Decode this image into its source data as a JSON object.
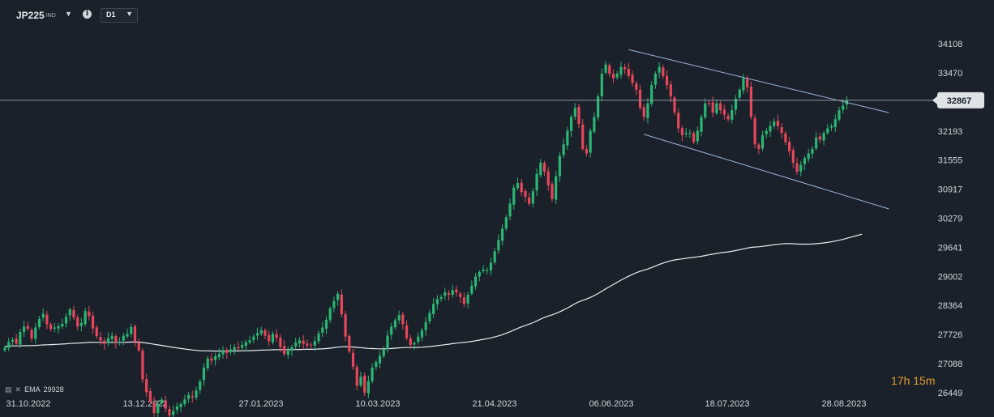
{
  "header": {
    "symbol": "JP225",
    "symbol_type": "IND",
    "info_icon": "info-icon",
    "timeframe": "D1"
  },
  "indicator": {
    "label": "EMA",
    "value": "29928",
    "icons": [
      "settings-icon",
      "close-icon"
    ]
  },
  "countdown": {
    "hours": "17",
    "h_unit": "h",
    "minutes": "15",
    "m_unit": "m"
  },
  "colors": {
    "background": "#1a212a",
    "bull": "#2bb673",
    "bear": "#e8465a",
    "ema": "#e9edf1",
    "channel": "#9db4d6",
    "price_line": "#8a97a6",
    "price_label_bg": "#dfe3e8"
  },
  "chart_data": {
    "type": "candlestick",
    "symbol": "JP225",
    "timeframe": "D1",
    "current_price": 32867,
    "y_ticks": [
      34108,
      33470,
      32867,
      32193,
      31555,
      30917,
      30279,
      29641,
      29002,
      28364,
      27726,
      27088,
      26449
    ],
    "x_ticks": [
      "31.10.2022",
      "13.12.2022",
      "27.01.2023",
      "10.03.2023",
      "21.04.2023",
      "06.06.2023",
      "18.07.2023",
      "28.08.2023"
    ],
    "closes": [
      27440,
      27560,
      27610,
      27520,
      27780,
      27900,
      27850,
      27640,
      27880,
      28070,
      28180,
      27950,
      27840,
      27880,
      27910,
      27960,
      28120,
      28280,
      28100,
      27900,
      27980,
      28240,
      28130,
      27860,
      27690,
      27590,
      27520,
      27650,
      27700,
      27550,
      27570,
      27700,
      27740,
      27890,
      27570,
      27380,
      26740,
      26460,
      26250,
      26000,
      26200,
      26300,
      26100,
      25950,
      26050,
      26150,
      26200,
      26300,
      26400,
      26350,
      26500,
      26700,
      27000,
      27200,
      27150,
      27250,
      27300,
      27380,
      27320,
      27400,
      27450,
      27420,
      27500,
      27560,
      27600,
      27680,
      27760,
      27820,
      27700,
      27580,
      27740,
      27650,
      27450,
      27300,
      27370,
      27450,
      27550,
      27600,
      27520,
      27480,
      27500,
      27580,
      27750,
      27880,
      28050,
      28300,
      28460,
      28620,
      28170,
      27680,
      27350,
      27020,
      26600,
      26800,
      26450,
      26700,
      27000,
      27120,
      27260,
      27400,
      27700,
      27900,
      28040,
      28150,
      27950,
      27650,
      27500,
      27540,
      27680,
      27820,
      28000,
      28200,
      28400,
      28500,
      28550,
      28650,
      28600,
      28700,
      28650,
      28550,
      28400,
      28600,
      28800,
      29000,
      29100,
      29150,
      29140,
      29300,
      29550,
      29800,
      30050,
      30300,
      30600,
      30950,
      31050,
      30850,
      30750,
      30600,
      30870,
      31250,
      31500,
      31300,
      31000,
      30700,
      31200,
      31650,
      31900,
      32200,
      32500,
      32700,
      32350,
      31800,
      31700,
      32200,
      32500,
      32950,
      33450,
      33650,
      33450,
      33350,
      33450,
      33600,
      33550,
      33400,
      33250,
      33100,
      32700,
      32500,
      32800,
      33200,
      33450,
      33600,
      33400,
      33200,
      32950,
      32600,
      32250,
      32100,
      32150,
      32150,
      31950,
      32200,
      32500,
      32800,
      32800,
      32600,
      32800,
      32650,
      32550,
      32450,
      32650,
      32900,
      33100,
      33350,
      33150,
      32500,
      31900,
      31800,
      32100,
      32200,
      32300,
      32400,
      32300,
      32150,
      31950,
      31750,
      31500,
      31300,
      31450,
      31600,
      31700,
      31800,
      32050,
      32000,
      32150,
      32250,
      32300,
      32450,
      32650,
      32750,
      32867
    ],
    "ema_start_index": 0,
    "ema": [
      27463,
      27472,
      27476,
      27476,
      27477,
      27480,
      27483,
      27483,
      27487,
      27492,
      27498,
      27501,
      27505,
      27508,
      27512,
      27517,
      27523,
      27530,
      27535,
      27537,
      27541,
      27548,
      27553,
      27556,
      27555,
      27555,
      27554,
      27555,
      27555,
      27555,
      27555,
      27556,
      27558,
      27561,
      27561,
      27560,
      27551,
      27540,
      27527,
      27512,
      27499,
      27487,
      27473,
      27458,
      27445,
      27432,
      27419,
      27408,
      27398,
      27387,
      27378,
      27371,
      27368,
      27367,
      27365,
      27364,
      27363,
      27364,
      27363,
      27364,
      27365,
      27366,
      27368,
      27370,
      27372,
      27375,
      27379,
      27383,
      27386,
      27388,
      27391,
      27394,
      27395,
      27394,
      27394,
      27395,
      27396,
      27398,
      27400,
      27401,
      27402,
      27404,
      27408,
      27412,
      27418,
      27427,
      27437,
      27449,
      27456,
      27458,
      27457,
      27453,
      27445,
      27438,
      27428,
      27421,
      27417,
      27414,
      27413,
      27413,
      27415,
      27420,
      27426,
      27433,
      27438,
      27440,
      27441,
      27442,
      27444,
      27448,
      27454,
      27461,
      27471,
      27481,
      27492,
      27503,
      27514,
      27525,
      27536,
      27545,
      27553,
      27563,
      27575,
      27589,
      27604,
      27620,
      27635,
      27652,
      27673,
      27697,
      27723,
      27753,
      27787,
      27823,
      27860,
      27894,
      27926,
      27955,
      27987,
      28024,
      28064,
      28101,
      28132,
      28158,
      28188,
      28225,
      28265,
      28307,
      28354,
      28403,
      28445,
      28476,
      28505,
      28541,
      28582,
      28626,
      28675,
      28728,
      28777,
      28823,
      28871,
      28919,
      28964,
      29007,
      29046,
      29083,
      29112,
      29137,
      29165,
      29196,
      29229,
      29264,
      29294,
      29321,
      29344,
      29363,
      29376,
      29387,
      29399,
      29411,
      29419,
      29430,
      29443,
      29460,
      29477,
      29490,
      29506,
      29519,
      29530,
      29540,
      29553,
      29569,
      29587,
      29607,
      29625,
      29639,
      29646,
      29651,
      29661,
      29672,
      29684,
      29697,
      29707,
      29715,
      29720,
      29721,
      29719,
      29713,
      29710,
      29709,
      29710,
      29712,
      29720,
      29727,
      29737,
      29749,
      29761,
      29777,
      29795,
      29815,
      29838,
      29860,
      29883,
      29905,
      29928
    ],
    "channel": {
      "upper": {
        "from": [
          "06.06.2023",
          34080
        ],
        "to": [
          "28.08.2023",
          32840
        ]
      },
      "lower": {
        "from": [
          "06.06.2023",
          32350
        ],
        "to": [
          "28.08.2023",
          30790
        ]
      }
    },
    "grid": false,
    "legend": "bottom-left"
  }
}
